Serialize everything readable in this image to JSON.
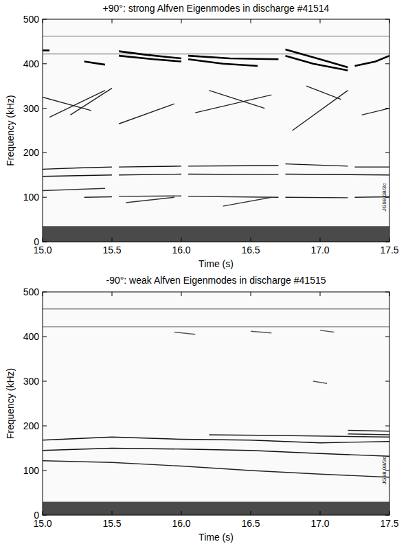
{
  "chart_data": [
    {
      "type": "line",
      "title": "+90°: strong Alfven Eigenmodes in discharge #41514",
      "x_label": "Time (s)",
      "y_label": "Frequency (kHz)",
      "annotation": "JG98.08/3c",
      "xlim": [
        15.0,
        17.5
      ],
      "xticks": [
        {
          "value": 15.0,
          "label": "15.0"
        },
        {
          "value": 15.5,
          "label": "15.5"
        },
        {
          "value": 16.0,
          "label": "16.0"
        },
        {
          "value": 16.5,
          "label": "16.5"
        },
        {
          "value": 17.0,
          "label": "17.0"
        },
        {
          "value": 17.5,
          "label": "17.5"
        }
      ],
      "ylim": [
        0,
        500
      ],
      "yticks": [
        0,
        100,
        200,
        300,
        400,
        500
      ],
      "series": [
        {
          "type": "area",
          "color": "#2a2a2a",
          "x": [
            15.0,
            17.5
          ],
          "values": [
            35,
            35
          ]
        },
        {
          "type": "line",
          "color": "#888888",
          "x": [
            15.0,
            17.5
          ],
          "values": [
            462,
            462
          ]
        },
        {
          "type": "line",
          "color": "#999999",
          "x": [
            15.0,
            17.5
          ],
          "values": [
            422,
            422
          ]
        },
        {
          "type": "line",
          "color": "#111111",
          "x": [
            15.0,
            15.25,
            15.5,
            null,
            15.55,
            16.0,
            null,
            16.05,
            16.5,
            16.7,
            null,
            16.75,
            17.2,
            null,
            17.25,
            17.5
          ],
          "values": [
            163,
            166,
            168,
            null,
            168,
            170,
            null,
            170,
            171,
            171,
            null,
            175,
            170,
            null,
            168,
            168
          ]
        },
        {
          "type": "line",
          "color": "#111111",
          "x": [
            15.0,
            15.5,
            null,
            15.55,
            16.0,
            null,
            16.05,
            16.7,
            null,
            16.75,
            17.5
          ],
          "values": [
            147,
            150,
            null,
            150,
            152,
            null,
            152,
            151,
            null,
            152,
            150
          ]
        },
        {
          "type": "line",
          "color": "#222222",
          "x": [
            15.3,
            15.5,
            null,
            15.55,
            16.0,
            null,
            16.05,
            16.7,
            null,
            16.75,
            17.2,
            null,
            17.25,
            17.5
          ],
          "values": [
            100,
            101,
            null,
            102,
            103,
            null,
            102,
            100,
            null,
            100,
            99,
            null,
            100,
            101
          ]
        },
        {
          "type": "line",
          "color": "#333333",
          "x": [
            15.0,
            15.45
          ],
          "values": [
            115,
            120
          ]
        },
        {
          "type": "line",
          "color": "#333333",
          "x": [
            16.3,
            16.65
          ],
          "values": [
            80,
            100
          ]
        },
        {
          "type": "line",
          "color": "#333333",
          "x": [
            15.6,
            15.95
          ],
          "values": [
            88,
            100
          ]
        },
        {
          "type": "line",
          "color": "#000000",
          "x": [
            15.55,
            15.75,
            16.0
          ],
          "values": [
            428,
            420,
            412
          ]
        },
        {
          "type": "line",
          "color": "#000000",
          "x": [
            15.55,
            15.8,
            16.0
          ],
          "values": [
            418,
            410,
            405
          ]
        },
        {
          "type": "line",
          "color": "#000000",
          "x": [
            16.05,
            16.35,
            16.7
          ],
          "values": [
            418,
            412,
            410
          ]
        },
        {
          "type": "line",
          "color": "#000000",
          "x": [
            16.05,
            16.3,
            16.55
          ],
          "values": [
            410,
            400,
            395
          ]
        },
        {
          "type": "line",
          "color": "#000000",
          "x": [
            16.75,
            17.0,
            17.2
          ],
          "values": [
            432,
            410,
            392
          ]
        },
        {
          "type": "line",
          "color": "#000000",
          "x": [
            16.75,
            16.95,
            17.2
          ],
          "values": [
            418,
            400,
            385
          ]
        },
        {
          "type": "line",
          "color": "#000000",
          "x": [
            17.25,
            17.4,
            17.5
          ],
          "values": [
            395,
            405,
            418
          ]
        },
        {
          "type": "line",
          "color": "#000000",
          "x": [
            15.3,
            15.45
          ],
          "values": [
            405,
            398
          ]
        },
        {
          "type": "line",
          "color": "#000000",
          "x": [
            15.0,
            15.05
          ],
          "values": [
            430,
            430
          ]
        },
        {
          "type": "line",
          "color": "#222222",
          "x": [
            15.2,
            15.5
          ],
          "values": [
            285,
            345
          ]
        },
        {
          "type": "line",
          "color": "#222222",
          "x": [
            15.0,
            15.35
          ],
          "values": [
            325,
            295
          ]
        },
        {
          "type": "line",
          "color": "#222222",
          "x": [
            15.05,
            15.45
          ],
          "values": [
            280,
            340
          ]
        },
        {
          "type": "line",
          "color": "#222222",
          "x": [
            15.55,
            15.95
          ],
          "values": [
            265,
            310
          ]
        },
        {
          "type": "line",
          "color": "#222222",
          "x": [
            16.1,
            16.65
          ],
          "values": [
            290,
            330
          ]
        },
        {
          "type": "line",
          "color": "#222222",
          "x": [
            16.2,
            16.6
          ],
          "values": [
            340,
            300
          ]
        },
        {
          "type": "line",
          "color": "#222222",
          "x": [
            16.8,
            17.2
          ],
          "values": [
            250,
            340
          ]
        },
        {
          "type": "line",
          "color": "#222222",
          "x": [
            16.9,
            17.15
          ],
          "values": [
            350,
            320
          ]
        },
        {
          "type": "line",
          "color": "#222222",
          "x": [
            17.3,
            17.5
          ],
          "values": [
            285,
            300
          ]
        }
      ]
    },
    {
      "type": "line",
      "title": "-90°: weak Alfven Eigenmodes in discharge #41515",
      "x_label": "Time (s)",
      "y_label": "Frequency (kHz)",
      "annotation": "JG98.08/3c",
      "xlim": [
        15.0,
        17.5
      ],
      "xticks": [
        {
          "value": 15.0,
          "label": "15.0"
        },
        {
          "value": 15.5,
          "label": "15.5"
        },
        {
          "value": 16.0,
          "label": "16.0"
        },
        {
          "value": 16.5,
          "label": "16.5"
        },
        {
          "value": 17.0,
          "label": "17.0"
        },
        {
          "value": 17.5,
          "label": "17.5"
        }
      ],
      "ylim": [
        0,
        500
      ],
      "yticks": [
        0,
        100,
        200,
        300,
        400,
        500
      ],
      "series": [
        {
          "type": "area",
          "color": "#2a2a2a",
          "x": [
            15.0,
            17.5
          ],
          "values": [
            30,
            30
          ]
        },
        {
          "type": "line",
          "color": "#888888",
          "x": [
            15.0,
            17.5
          ],
          "values": [
            462,
            462
          ]
        },
        {
          "type": "line",
          "color": "#999999",
          "x": [
            15.0,
            17.5
          ],
          "values": [
            422,
            422
          ]
        },
        {
          "type": "line",
          "color": "#111111",
          "x": [
            15.0,
            15.5,
            16.0,
            16.5,
            17.0,
            17.5
          ],
          "values": [
            168,
            175,
            170,
            168,
            162,
            165
          ]
        },
        {
          "type": "line",
          "color": "#111111",
          "x": [
            15.0,
            15.5,
            16.0,
            16.5,
            17.0,
            17.5
          ],
          "values": [
            145,
            150,
            148,
            145,
            138,
            132
          ]
        },
        {
          "type": "line",
          "color": "#222222",
          "x": [
            15.0,
            15.5,
            16.0,
            16.5,
            17.0,
            17.5
          ],
          "values": [
            122,
            118,
            110,
            100,
            92,
            85
          ]
        },
        {
          "type": "line",
          "color": "#222222",
          "x": [
            16.2,
            16.8,
            17.5
          ],
          "values": [
            180,
            178,
            175
          ]
        },
        {
          "type": "line",
          "color": "#222222",
          "x": [
            17.2,
            17.5
          ],
          "values": [
            182,
            180
          ]
        },
        {
          "type": "line",
          "color": "#222222",
          "x": [
            17.2,
            17.5
          ],
          "values": [
            190,
            188
          ]
        },
        {
          "type": "line",
          "color": "#555555",
          "x": [
            15.95,
            16.1
          ],
          "values": [
            410,
            405
          ]
        },
        {
          "type": "line",
          "color": "#555555",
          "x": [
            16.5,
            16.65
          ],
          "values": [
            412,
            408
          ]
        },
        {
          "type": "line",
          "color": "#555555",
          "x": [
            17.0,
            17.1
          ],
          "values": [
            414,
            410
          ]
        },
        {
          "type": "line",
          "color": "#555555",
          "x": [
            16.95,
            17.05
          ],
          "values": [
            300,
            295
          ]
        }
      ]
    }
  ]
}
